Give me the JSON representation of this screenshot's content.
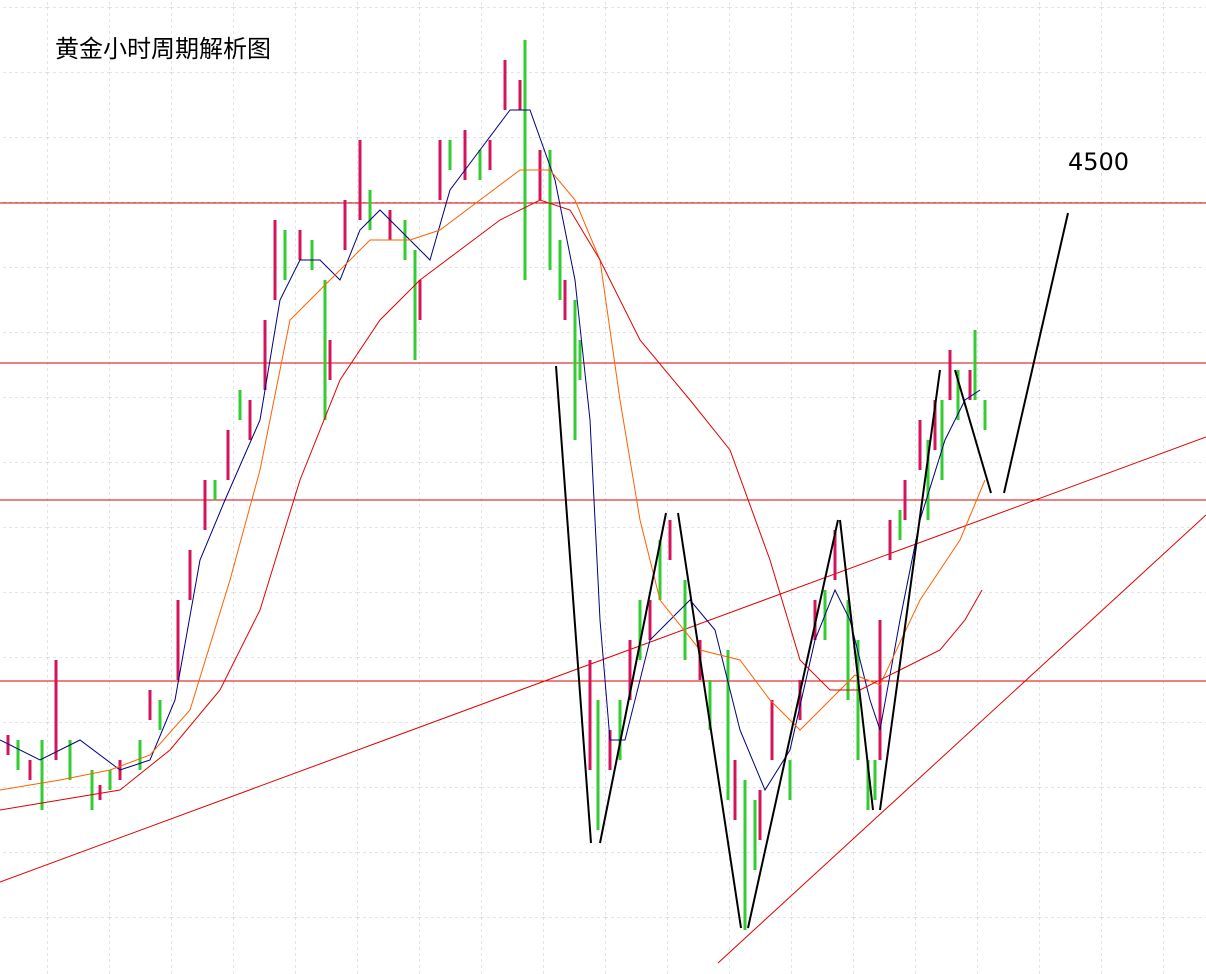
{
  "header": {
    "title": "黄金小时周期解析图"
  },
  "annotations": [
    "4500"
  ]
}
